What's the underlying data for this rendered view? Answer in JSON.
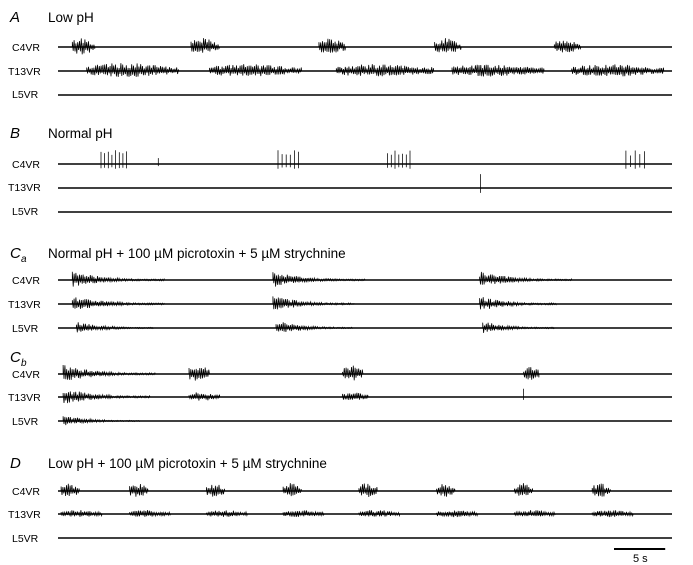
{
  "panels": [
    {
      "letter": "A",
      "subscript": "",
      "title": "Low pH",
      "traces": [
        {
          "label": "C4VR",
          "events": [
            {
              "t": 1.4,
              "dur": 2.2,
              "amp": 10,
              "type": "burst"
            },
            {
              "t": 13.0,
              "dur": 2.8,
              "amp": 9,
              "type": "burst"
            },
            {
              "t": 25.5,
              "dur": 2.6,
              "amp": 9,
              "type": "burst"
            },
            {
              "t": 36.8,
              "dur": 2.6,
              "amp": 9,
              "type": "burst"
            },
            {
              "t": 48.5,
              "dur": 2.6,
              "amp": 9,
              "type": "burst"
            }
          ]
        },
        {
          "label": "T13VR",
          "events": [
            {
              "t": 2.8,
              "dur": 9.0,
              "amp": 8,
              "type": "burst"
            },
            {
              "t": 14.8,
              "dur": 9.0,
              "amp": 7,
              "type": "burst"
            },
            {
              "t": 27.2,
              "dur": 9.5,
              "amp": 7,
              "type": "burst"
            },
            {
              "t": 38.5,
              "dur": 9.0,
              "amp": 7,
              "type": "burst"
            },
            {
              "t": 50.2,
              "dur": 9.0,
              "amp": 7,
              "type": "burst"
            }
          ]
        },
        {
          "label": "L5VR",
          "events": []
        }
      ]
    },
    {
      "letter": "B",
      "subscript": "",
      "title": "Normal pH",
      "traces": [
        {
          "label": "C4VR",
          "events": [
            {
              "t": 4.2,
              "dur": 2.5,
              "amp": 14,
              "type": "spikes"
            },
            {
              "t": 9.8,
              "dur": 0.2,
              "amp": 6,
              "type": "spikes"
            },
            {
              "t": 21.5,
              "dur": 2.0,
              "amp": 14,
              "type": "spikes"
            },
            {
              "t": 32.2,
              "dur": 2.2,
              "amp": 14,
              "type": "spikes"
            },
            {
              "t": 55.5,
              "dur": 1.8,
              "amp": 14,
              "type": "spikes"
            }
          ]
        },
        {
          "label": "T13VR",
          "events": [
            {
              "t": 41.3,
              "dur": 0.2,
              "amp": 16,
              "type": "spikes"
            }
          ]
        },
        {
          "label": "L5VR",
          "events": []
        }
      ]
    },
    {
      "letter": "C",
      "subscript": "a",
      "title": "Normal pH + 100 µM picrotoxin + 5 µM strychnine",
      "traces": [
        {
          "label": "C4VR",
          "events": [
            {
              "t": 1.4,
              "dur": 9.0,
              "amp": 9,
              "type": "decay"
            },
            {
              "t": 21.0,
              "dur": 9.0,
              "amp": 9,
              "type": "decay"
            },
            {
              "t": 41.2,
              "dur": 9.0,
              "amp": 9,
              "type": "decay"
            }
          ]
        },
        {
          "label": "T13VR",
          "events": [
            {
              "t": 1.4,
              "dur": 9.0,
              "amp": 9,
              "type": "decay"
            },
            {
              "t": 21.0,
              "dur": 8.0,
              "amp": 9,
              "type": "decay"
            },
            {
              "t": 41.2,
              "dur": 7.5,
              "amp": 9,
              "type": "decay"
            }
          ]
        },
        {
          "label": "L5VR",
          "events": [
            {
              "t": 1.8,
              "dur": 7.5,
              "amp": 7,
              "type": "decay"
            },
            {
              "t": 21.3,
              "dur": 7.5,
              "amp": 8,
              "type": "decay"
            },
            {
              "t": 41.5,
              "dur": 7.0,
              "amp": 7,
              "type": "decay"
            }
          ]
        }
      ]
    },
    {
      "letter": "C",
      "subscript": "b",
      "title": "",
      "traces": [
        {
          "label": "C4VR",
          "events": [
            {
              "t": 0.5,
              "dur": 9.0,
              "amp": 10,
              "type": "decay"
            },
            {
              "t": 12.8,
              "dur": 2.0,
              "amp": 10,
              "type": "burst"
            },
            {
              "t": 27.8,
              "dur": 2.0,
              "amp": 9,
              "type": "burst"
            },
            {
              "t": 45.5,
              "dur": 1.5,
              "amp": 8,
              "type": "burst"
            }
          ]
        },
        {
          "label": "T13VR",
          "events": [
            {
              "t": 0.5,
              "dur": 8.5,
              "amp": 10,
              "type": "decay"
            },
            {
              "t": 12.8,
              "dur": 3.0,
              "amp": 5,
              "type": "burst"
            },
            {
              "t": 27.8,
              "dur": 2.5,
              "amp": 5,
              "type": "burst"
            },
            {
              "t": 45.5,
              "dur": 0.4,
              "amp": 9,
              "type": "spikes"
            }
          ]
        },
        {
          "label": "L5VR",
          "events": [
            {
              "t": 0.5,
              "dur": 7.5,
              "amp": 6,
              "type": "decay"
            }
          ]
        }
      ]
    },
    {
      "letter": "D",
      "subscript": "",
      "title": "Low pH + 100 µM picrotoxin + 5 µM strychnine",
      "traces": [
        {
          "label": "C4VR",
          "events": [
            {
              "t": 0.3,
              "dur": 1.8,
              "amp": 8,
              "type": "burst"
            },
            {
              "t": 7.0,
              "dur": 1.8,
              "amp": 8,
              "type": "burst"
            },
            {
              "t": 14.5,
              "dur": 1.8,
              "amp": 8,
              "type": "burst"
            },
            {
              "t": 22.0,
              "dur": 1.8,
              "amp": 8,
              "type": "burst"
            },
            {
              "t": 29.4,
              "dur": 1.8,
              "amp": 8,
              "type": "burst"
            },
            {
              "t": 37.0,
              "dur": 1.8,
              "amp": 8,
              "type": "burst"
            },
            {
              "t": 44.6,
              "dur": 1.8,
              "amp": 8,
              "type": "burst"
            },
            {
              "t": 52.2,
              "dur": 1.8,
              "amp": 8,
              "type": "burst"
            }
          ]
        },
        {
          "label": "T13VR",
          "events": [
            {
              "t": 0.3,
              "dur": 4.0,
              "amp": 4,
              "type": "burst"
            },
            {
              "t": 7.0,
              "dur": 4.0,
              "amp": 4,
              "type": "burst"
            },
            {
              "t": 14.5,
              "dur": 4.0,
              "amp": 4,
              "type": "burst"
            },
            {
              "t": 22.0,
              "dur": 4.0,
              "amp": 4,
              "type": "burst"
            },
            {
              "t": 29.4,
              "dur": 4.0,
              "amp": 4,
              "type": "burst"
            },
            {
              "t": 37.0,
              "dur": 4.0,
              "amp": 4,
              "type": "burst"
            },
            {
              "t": 44.6,
              "dur": 4.0,
              "amp": 4,
              "type": "burst"
            },
            {
              "t": 52.2,
              "dur": 4.0,
              "amp": 4,
              "type": "burst"
            }
          ]
        },
        {
          "label": "L5VR",
          "events": []
        }
      ]
    }
  ],
  "scale_bar": {
    "label": "5 s",
    "seconds": 5
  },
  "total_seconds": 60
}
